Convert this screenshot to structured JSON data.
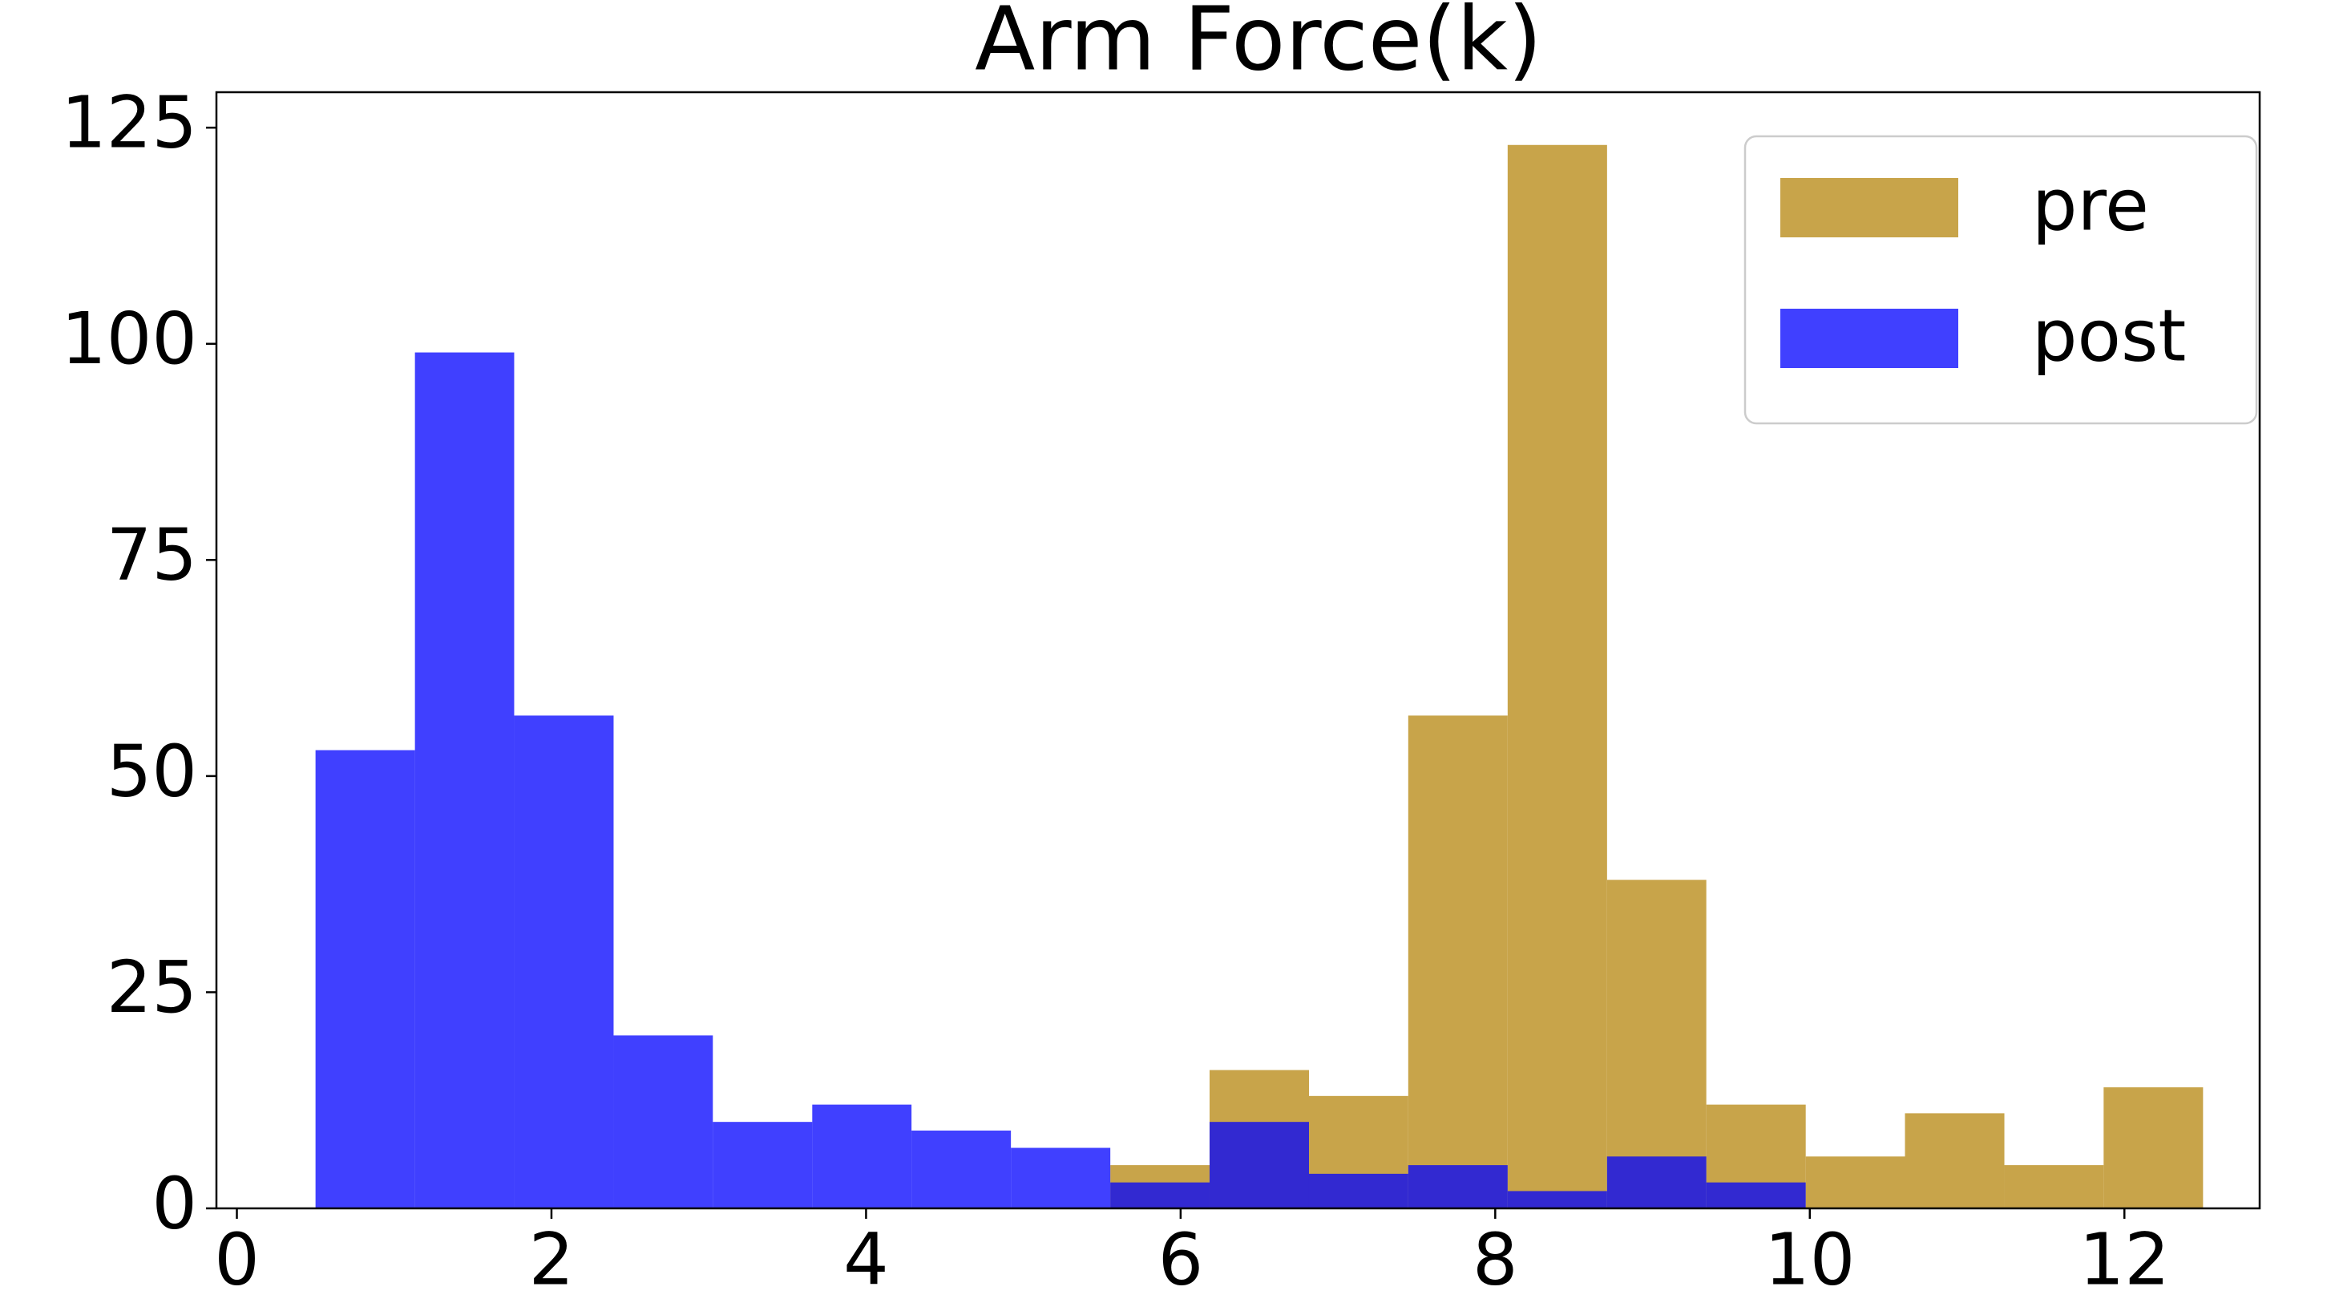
{
  "chart_data": {
    "type": "histogram",
    "title": "Arm Force(k)",
    "bins": [
      0.5,
      1.132,
      1.763,
      2.395,
      3.026,
      3.658,
      4.289,
      4.921,
      5.553,
      6.184,
      6.816,
      7.447,
      8.079,
      8.711,
      9.342,
      9.974,
      10.605,
      11.237,
      11.868,
      12.5
    ],
    "series": [
      {
        "name": "pre",
        "color": "#c8a44a",
        "values": [
          0,
          0,
          0,
          0,
          0,
          0,
          0,
          0,
          5,
          16,
          13,
          57,
          123,
          38,
          12,
          6,
          11,
          5,
          14
        ]
      },
      {
        "name": "post",
        "color": "#0000ff",
        "values": [
          53,
          99,
          57,
          20,
          10,
          12,
          9,
          7,
          3,
          10,
          4,
          5,
          2,
          6,
          3,
          0,
          0,
          0,
          0
        ]
      }
    ],
    "xlim": [
      -0.13,
      12.86
    ],
    "ylim": [
      0,
      129.1
    ],
    "xticks": [
      0,
      2,
      4,
      6,
      8,
      10,
      12
    ],
    "yticks": [
      0,
      25,
      50,
      75,
      100,
      125
    ],
    "grid": false,
    "legend": "upper right"
  }
}
